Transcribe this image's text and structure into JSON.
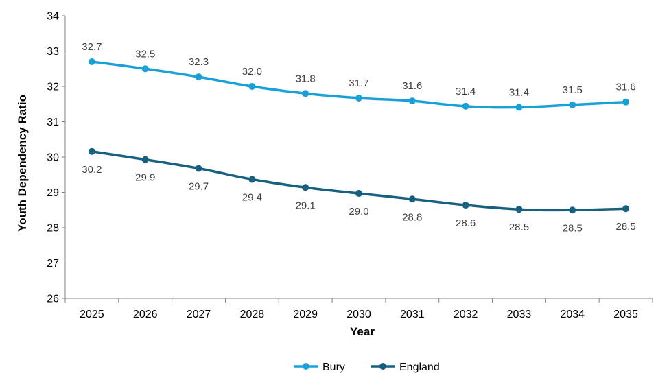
{
  "chart_data": {
    "type": "line",
    "xlabel": "Year",
    "ylabel": "Youth Dependency Ratio",
    "categories": [
      "2025",
      "2026",
      "2027",
      "2028",
      "2029",
      "2030",
      "2031",
      "2032",
      "2033",
      "2034",
      "2035"
    ],
    "ylim": [
      26,
      34
    ],
    "yticks": [
      "26",
      "27",
      "28",
      "29",
      "30",
      "31",
      "32",
      "33",
      "34"
    ],
    "grid": false,
    "legend_position": "bottom",
    "series": [
      {
        "name": "Bury",
        "color": "#1aa0d8",
        "values": [
          32.7,
          32.5,
          32.27,
          32.0,
          31.8,
          31.67,
          31.59,
          31.44,
          31.41,
          31.48,
          31.56
        ],
        "labels": [
          "32.7",
          "32.5",
          "32.3",
          "32.0",
          "31.8",
          "31.7",
          "31.6",
          "31.4",
          "31.4",
          "31.5",
          "31.6"
        ],
        "label_position": "above"
      },
      {
        "name": "England",
        "color": "#17607f",
        "values": [
          30.16,
          29.93,
          29.68,
          29.37,
          29.14,
          28.97,
          28.81,
          28.64,
          28.52,
          28.5,
          28.54
        ],
        "labels": [
          "30.2",
          "29.9",
          "29.7",
          "29.4",
          "29.1",
          "29.0",
          "28.8",
          "28.6",
          "28.5",
          "28.5",
          "28.5"
        ],
        "label_position": "below"
      }
    ]
  }
}
